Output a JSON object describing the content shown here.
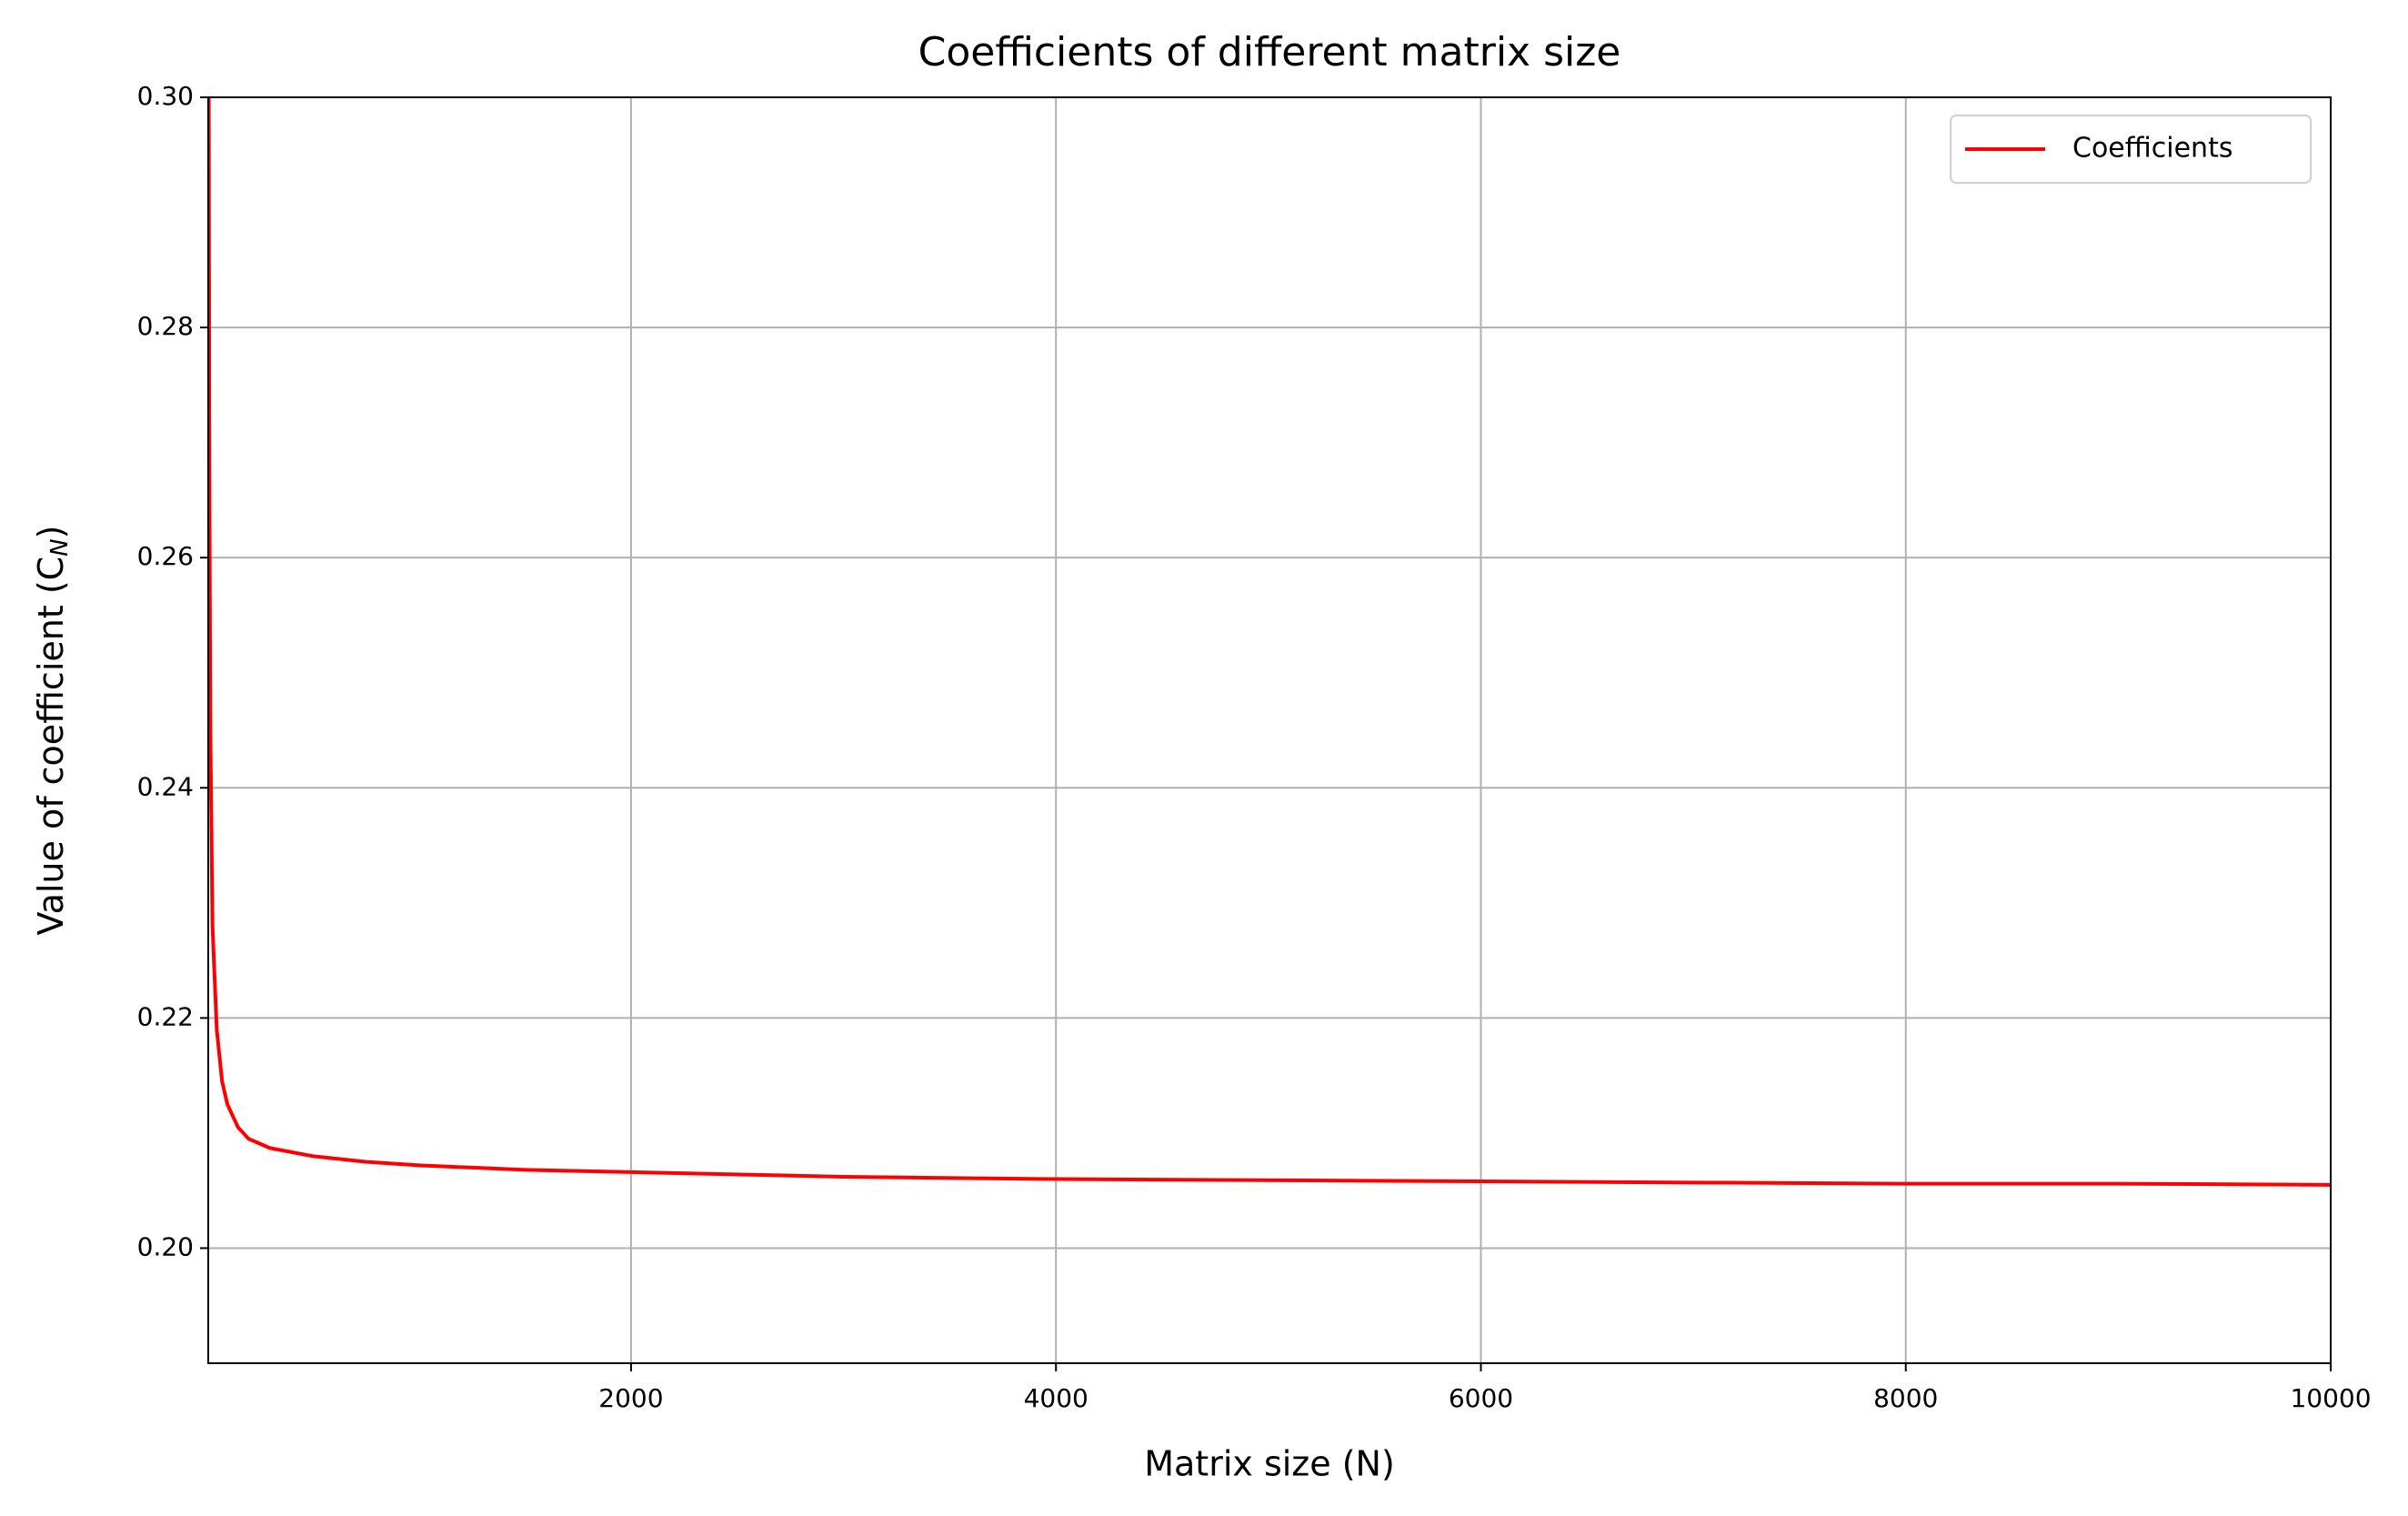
{
  "chart_data": {
    "type": "line",
    "title": "Coefficients of different matrix size",
    "xlabel": "Matrix size (N)",
    "ylabel": [
      "Value of coefficient (C",
      "N",
      ")"
    ],
    "x": [
      10,
      15,
      20,
      30,
      50,
      75,
      100,
      150,
      200,
      300,
      500,
      750,
      1000,
      1500,
      2000,
      3000,
      4000,
      5000,
      6000,
      7000,
      8000,
      9000,
      10000
    ],
    "series": [
      {
        "name": "Coefficients",
        "color": "#ff0000",
        "values": [
          0.33,
          0.27,
          0.245,
          0.228,
          0.219,
          0.2145,
          0.2125,
          0.2105,
          0.2095,
          0.2087,
          0.208,
          0.2075,
          0.2072,
          0.2068,
          0.2066,
          0.2062,
          0.206,
          0.2059,
          0.2058,
          0.2057,
          0.2056,
          0.2056,
          0.2055
        ]
      }
    ],
    "xlim": [
      10,
      10000
    ],
    "xticks": [
      2000,
      4000,
      6000,
      8000,
      10000
    ],
    "ylim": [
      0.19,
      0.3
    ],
    "yticks": [
      0.2,
      0.22,
      0.24,
      0.26,
      0.28,
      {
        "value": 0.3,
        "label": "0.30"
      },
      {
        "value": 0.2,
        "label": "0.20"
      }
    ],
    "grid": true,
    "legend": "upper right"
  }
}
